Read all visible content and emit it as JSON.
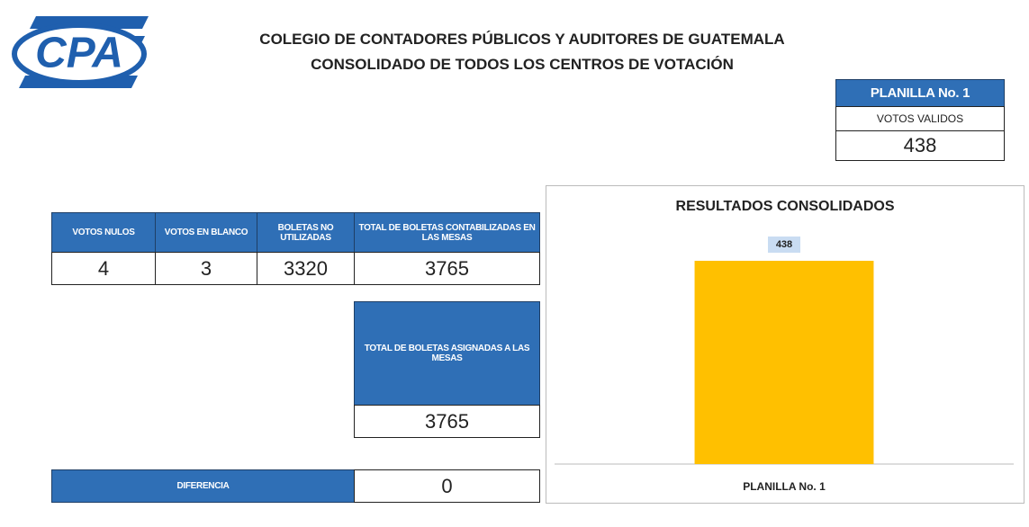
{
  "logo": "CPA",
  "header": {
    "title": "COLEGIO DE CONTADORES PÚBLICOS Y AUDITORES DE GUATEMALA",
    "subtitle": "CONSOLIDADO DE TODOS LOS CENTROS DE VOTACIÓN"
  },
  "planilla": {
    "title": "PLANILLA No. 1",
    "label": "VOTOS VALIDOS",
    "value": 438
  },
  "table": {
    "headers": [
      "VOTOS NULOS",
      "VOTOS EN BLANCO",
      "BOLETAS NO UTILIZADAS",
      "TOTAL DE BOLETAS CONTABILIZADAS EN LAS MESAS"
    ],
    "values": [
      4,
      3,
      3320,
      3765
    ]
  },
  "asignadas": {
    "label": "TOTAL DE BOLETAS ASIGNADAS A LAS MESAS",
    "value": 3765
  },
  "diferencia": {
    "label": "DIFERENCIA",
    "value": 0
  },
  "chart_data": {
    "type": "bar",
    "title": "RESULTADOS CONSOLIDADOS",
    "categories": [
      "PLANILLA No. 1"
    ],
    "values": [
      438
    ],
    "color": "#ffc000",
    "ylim": [
      0,
      500
    ]
  }
}
